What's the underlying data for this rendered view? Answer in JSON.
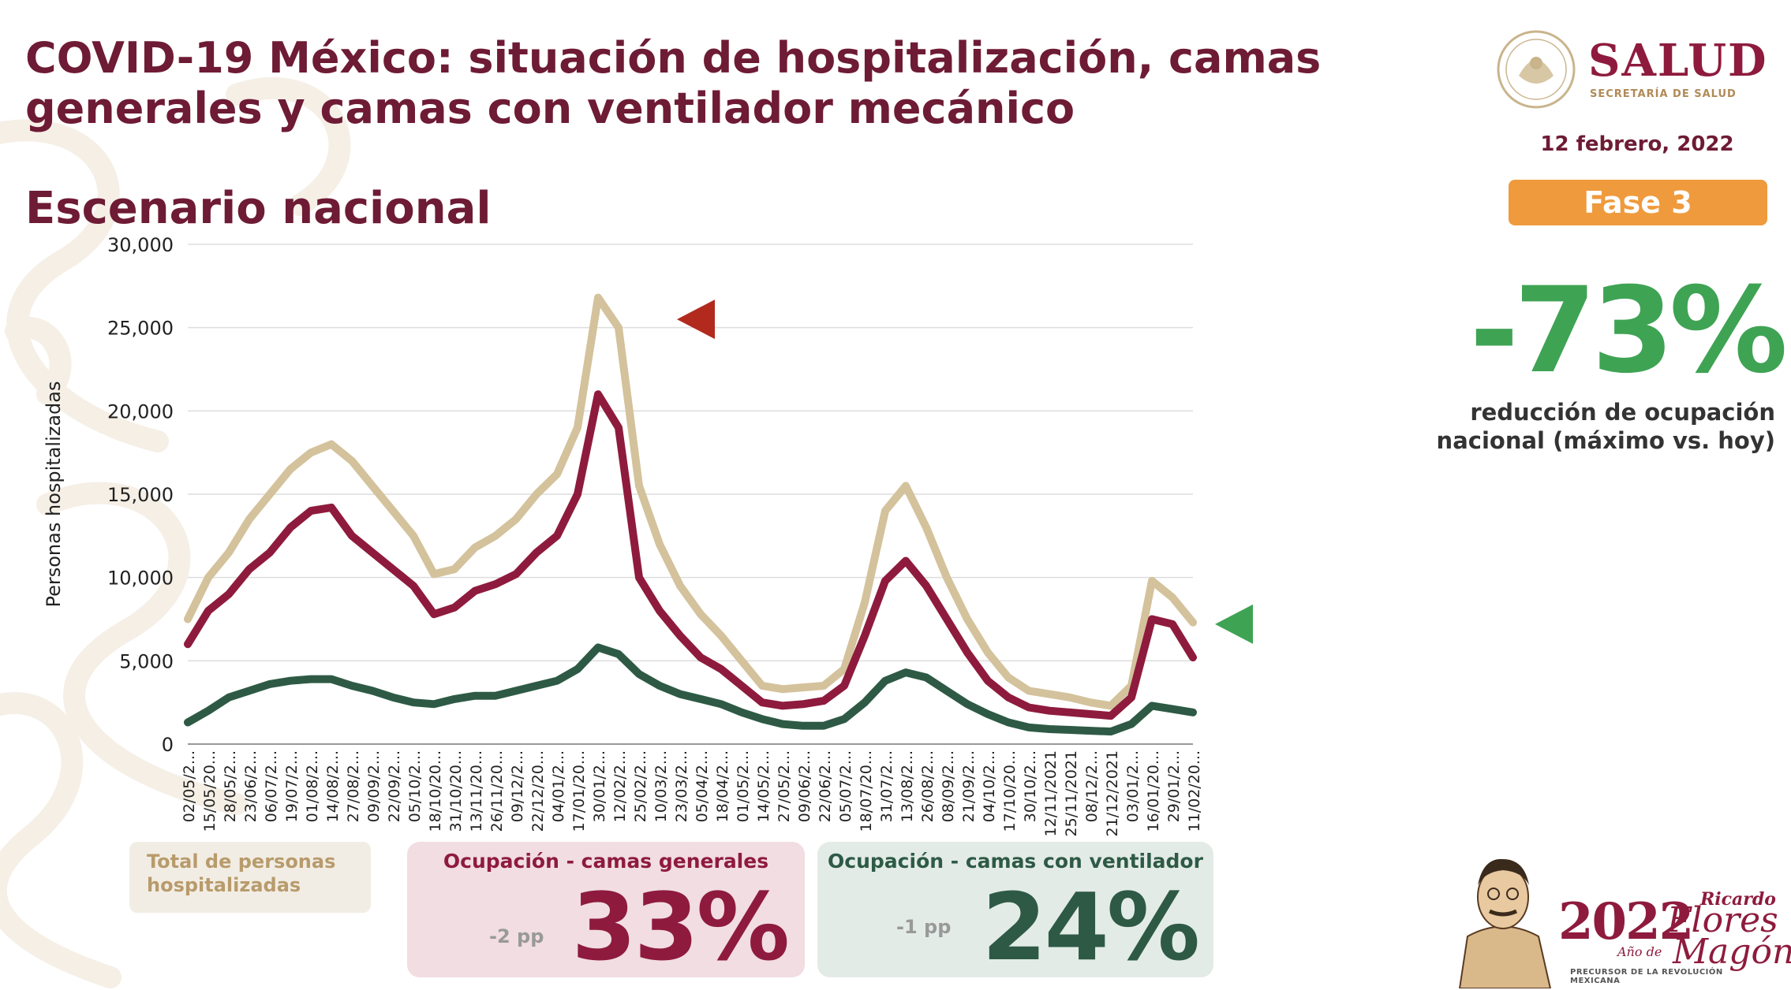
{
  "header": {
    "title": "COVID-19 México: situación de hospitalización, camas generales y camas con ventilador mecánico",
    "subtitle": "Escenario nacional"
  },
  "logo": {
    "name": "SALUD",
    "sub": "SECRETARÍA DE SALUD"
  },
  "date": "12 febrero, 2022",
  "phase": "Fase 3",
  "reduction": {
    "value": "-73%",
    "label": "reducción de ocupación nacional (máximo vs. hoy)"
  },
  "cards": {
    "total": {
      "label": "Total de personas hospitalizadas"
    },
    "general": {
      "label": "Ocupación - camas generales",
      "change": "-2 pp",
      "value": "33%"
    },
    "ventilator": {
      "label": "Ocupación - camas con ventilador",
      "change": "-1 pp",
      "value": "24%"
    }
  },
  "footer_mark": {
    "year": "2022",
    "year_of": "Año de",
    "name_first": "Ricardo",
    "name_middle": "Flores",
    "name_last": "Magón",
    "tagline": "PRECURSOR DE LA REVOLUCIÓN MEXICANA"
  },
  "colors": {
    "total": "#d3c29b",
    "general": "#8e1b3d",
    "ventilator": "#2e5a45",
    "marker_peak": "#b22a1e",
    "marker_now": "#3fa354"
  },
  "chart_data": {
    "type": "line",
    "ylabel": "Personas hospitalizadas",
    "ylim": [
      0,
      30000
    ],
    "yticks": [
      0,
      5000,
      10000,
      15000,
      20000,
      25000,
      30000
    ],
    "ytick_labels": [
      "0",
      "5,000",
      "10,000",
      "15,000",
      "20,000",
      "25,000",
      "30,000"
    ],
    "grid": true,
    "x_tick_labels": [
      "02/05/2...",
      "15/05/20...",
      "28/05/2...",
      "23/06/2...",
      "06/07/2...",
      "19/07/2...",
      "01/08/2...",
      "14/08/2...",
      "27/08/2...",
      "09/09/2...",
      "22/09/2...",
      "05/10/2...",
      "18/10/20...",
      "31/10/20...",
      "13/11/20...",
      "26/11/20...",
      "09/12/2...",
      "22/12/20...",
      "04/01/2...",
      "17/01/20...",
      "30/01/2...",
      "12/02/2...",
      "25/02/2...",
      "10/03/2...",
      "23/03/2...",
      "05/04/2...",
      "18/04/2...",
      "01/05/2...",
      "14/05/2...",
      "27/05/2...",
      "09/06/2...",
      "22/06/2...",
      "05/07/2...",
      "18/07/20...",
      "31/07/2...",
      "13/08/2...",
      "26/08/2...",
      "08/09/2...",
      "21/09/2...",
      "04/10/2...",
      "17/10/20...",
      "30/10/2...",
      "12/11/2021",
      "25/11/2021",
      "08/12/2...",
      "21/12/2021",
      "03/01/2...",
      "16/01/20...",
      "29/01/2...",
      "11/02/20..."
    ],
    "series": [
      {
        "key": "total",
        "values": [
          7500,
          10000,
          11500,
          13500,
          15000,
          16500,
          17500,
          18000,
          17000,
          15500,
          14000,
          12500,
          10200,
          10500,
          11800,
          12500,
          13500,
          15000,
          16200,
          19000,
          26800,
          25000,
          15500,
          12000,
          9500,
          7800,
          6500,
          5000,
          3500,
          3300,
          3400,
          3500,
          4500,
          8500,
          14000,
          15500,
          13000,
          10000,
          7500,
          5500,
          4000,
          3200,
          3000,
          2800,
          2500,
          2300,
          3500,
          9800,
          8800,
          7300
        ]
      },
      {
        "key": "general",
        "values": [
          6000,
          8000,
          9000,
          10500,
          11500,
          13000,
          14000,
          14200,
          12500,
          11500,
          10500,
          9500,
          7800,
          8200,
          9200,
          9600,
          10200,
          11500,
          12500,
          15000,
          21000,
          19000,
          10000,
          8000,
          6500,
          5200,
          4500,
          3500,
          2500,
          2300,
          2400,
          2600,
          3500,
          6500,
          9800,
          11000,
          9500,
          7500,
          5500,
          3800,
          2800,
          2200,
          2000,
          1900,
          1800,
          1700,
          2800,
          7500,
          7200,
          5200
        ]
      },
      {
        "key": "ventilator",
        "values": [
          1300,
          2000,
          2800,
          3200,
          3600,
          3800,
          3900,
          3900,
          3500,
          3200,
          2800,
          2500,
          2400,
          2700,
          2900,
          2900,
          3200,
          3500,
          3800,
          4500,
          5800,
          5400,
          4200,
          3500,
          3000,
          2700,
          2400,
          1900,
          1500,
          1200,
          1100,
          1100,
          1500,
          2500,
          3800,
          4300,
          4000,
          3200,
          2400,
          1800,
          1300,
          1000,
          900,
          850,
          800,
          750,
          1200,
          2300,
          2100,
          1900
        ]
      }
    ],
    "markers": [
      {
        "shape": "triangle-left",
        "y": 25500,
        "color_key": "marker_peak"
      },
      {
        "shape": "triangle-left",
        "y": 7200,
        "color_key": "marker_now"
      }
    ]
  }
}
